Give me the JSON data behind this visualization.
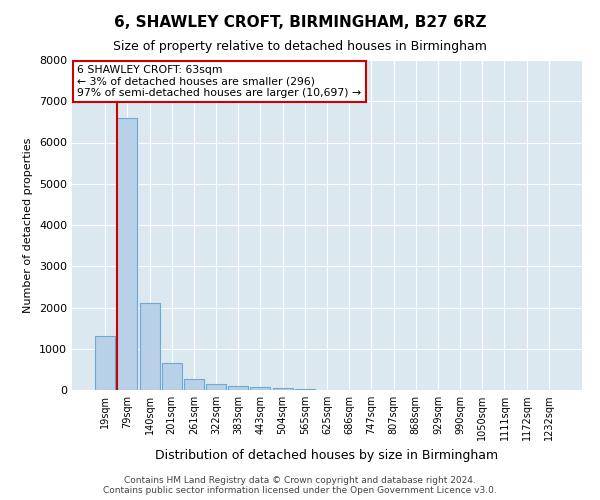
{
  "title": "6, SHAWLEY CROFT, BIRMINGHAM, B27 6RZ",
  "subtitle": "Size of property relative to detached houses in Birmingham",
  "xlabel": "Distribution of detached houses by size in Birmingham",
  "ylabel": "Number of detached properties",
  "bar_color": "#b8d0e8",
  "bar_edge_color": "#6aaad4",
  "background_color": "#dce8f0",
  "grid_color": "#ffffff",
  "categories": [
    "19sqm",
    "79sqm",
    "140sqm",
    "201sqm",
    "261sqm",
    "322sqm",
    "383sqm",
    "443sqm",
    "504sqm",
    "565sqm",
    "625sqm",
    "686sqm",
    "747sqm",
    "807sqm",
    "868sqm",
    "929sqm",
    "990sqm",
    "1050sqm",
    "1111sqm",
    "1172sqm",
    "1232sqm"
  ],
  "values": [
    1300,
    6600,
    2100,
    650,
    260,
    140,
    100,
    80,
    50,
    20,
    10,
    5,
    3,
    2,
    1,
    1,
    0,
    0,
    0,
    0,
    0
  ],
  "ylim_max": 8000,
  "yticks": [
    0,
    1000,
    2000,
    3000,
    4000,
    5000,
    6000,
    7000,
    8000
  ],
  "red_line_x": 0.55,
  "red_line_color": "#cc0000",
  "annotation_line1": "6 SHAWLEY CROFT: 63sqm",
  "annotation_line2": "← 3% of detached houses are smaller (296)",
  "annotation_line3": "97% of semi-detached houses are larger (10,697) →",
  "footer_line1": "Contains HM Land Registry data © Crown copyright and database right 2024.",
  "footer_line2": "Contains public sector information licensed under the Open Government Licence v3.0."
}
